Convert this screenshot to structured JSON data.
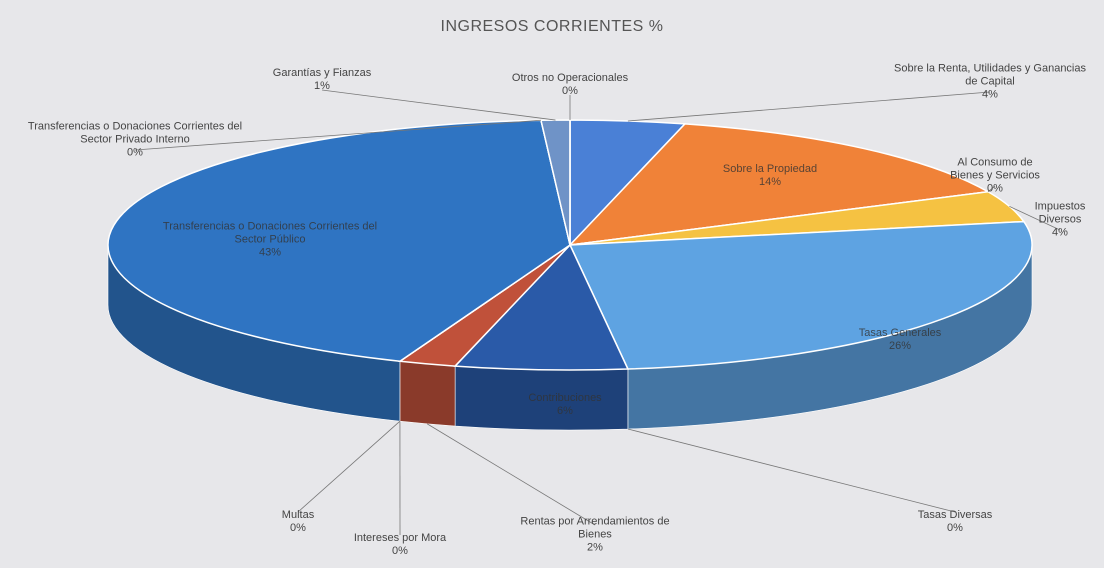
{
  "chart_data": {
    "type": "pie3d",
    "title": "INGRESOS CORRIENTES %",
    "categories": [
      "Sobre la Renta, Utilidades y Ganancias de Capital",
      "Sobre la Propiedad",
      "Al Consumo de Bienes y Servicios",
      "Impuestos Diversos",
      "Tasas Generales",
      "Tasas Diversas",
      "Contribuciones",
      "Rentas por Arrendamientos de Bienes",
      "Intereses por Mora",
      "Multas",
      "Transferencias o Donaciones Corrientes del Sector Público",
      "Transferencias o Donaciones Corrientes del Sector Privado Interno",
      "Garantías y Fianzas",
      "Otros no Operacionales"
    ],
    "values": [
      4,
      14,
      0,
      4,
      26,
      0,
      6,
      2,
      0,
      0,
      43,
      0,
      1,
      0
    ],
    "value_labels": [
      "4%",
      "14%",
      "0%",
      "4%",
      "26%",
      "0%",
      "6%",
      "2%",
      "0%",
      "0%",
      "43%",
      "0%",
      "1%",
      "0%"
    ],
    "colors": [
      "#4a80d6",
      "#f08238",
      "#a5a5a5",
      "#f5c242",
      "#5ea3e2",
      "#2e6fc0",
      "#2a5aa8",
      "#c0513a",
      "#7f6a5a",
      "#8a8a8a",
      "#2f74c2",
      "#9bb8dd",
      "#6f93c7",
      "#cfd8e6"
    ]
  }
}
